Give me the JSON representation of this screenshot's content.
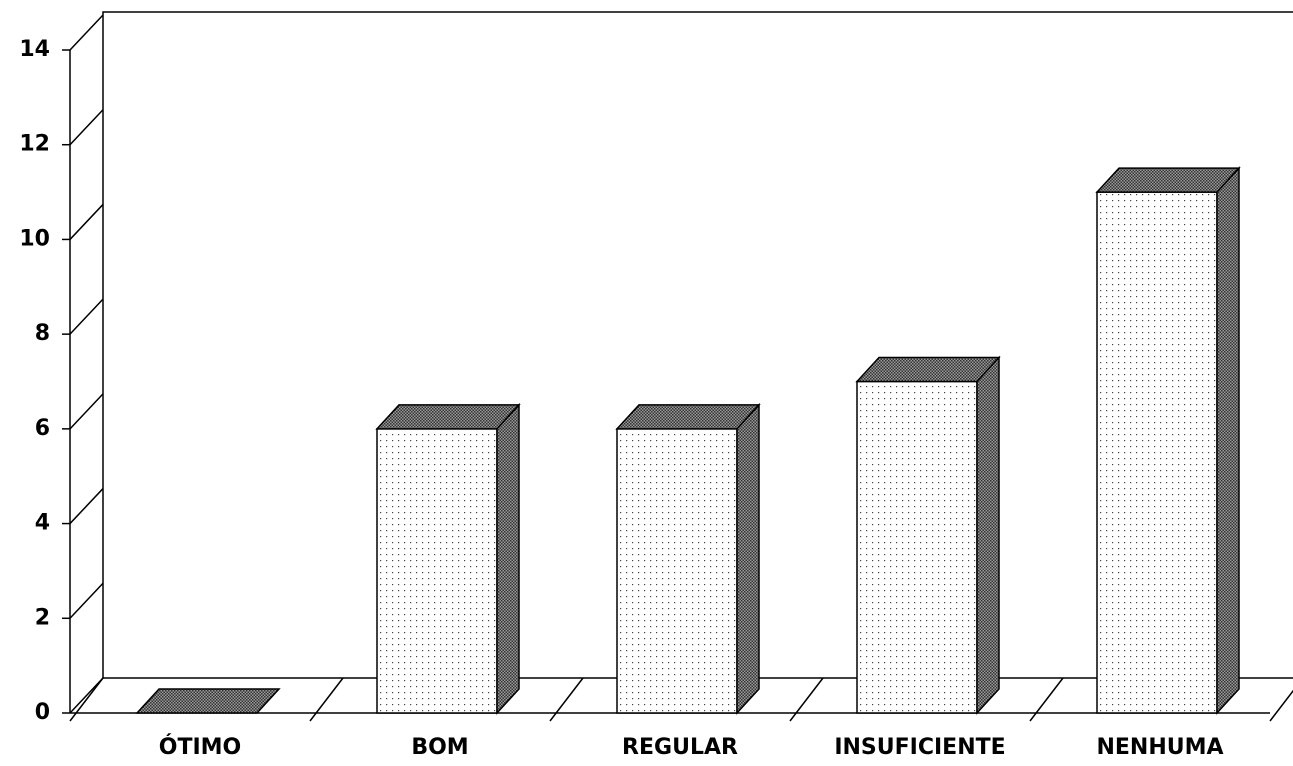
{
  "chart_data": {
    "type": "bar",
    "categories": [
      "ÓTIMO",
      "BOM",
      "REGULAR",
      "INSUFICIENTE",
      "NENHUMA"
    ],
    "values": [
      0,
      6,
      6,
      7,
      11
    ],
    "ylim": [
      0,
      14
    ],
    "yticks": [
      0,
      2,
      4,
      6,
      8,
      10,
      12,
      14
    ]
  }
}
